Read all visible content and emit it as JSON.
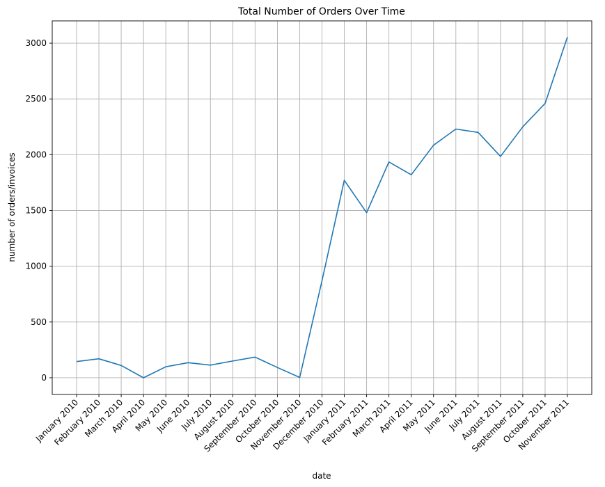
{
  "chart_data": {
    "type": "line",
    "title": "Total Number of Orders Over Time",
    "xlabel": "date",
    "ylabel": "number of orders/invoices",
    "categories": [
      "January 2010",
      "February 2010",
      "March 2010",
      "April 2010",
      "May 2010",
      "June 2010",
      "July 2010",
      "August 2010",
      "September 2010",
      "October 2010",
      "November 2010",
      "December 2010",
      "January 2011",
      "February 2011",
      "March 2011",
      "April 2011",
      "May 2011",
      "June 2011",
      "July 2011",
      "August 2011",
      "September 2011",
      "October 2011",
      "November 2011"
    ],
    "series": [
      {
        "values": [
          145,
          170,
          110,
          0,
          98,
          135,
          113,
          150,
          185,
          92,
          3,
          870,
          1770,
          1480,
          1935,
          1820,
          2085,
          2230,
          2200,
          1985,
          2250,
          2460,
          3055
        ]
      }
    ],
    "ylim": [
      -150,
      3200
    ],
    "yticks": [
      0,
      500,
      1000,
      1500,
      2000,
      2500,
      3000
    ],
    "grid": true,
    "line_color": "#1f77b4"
  }
}
